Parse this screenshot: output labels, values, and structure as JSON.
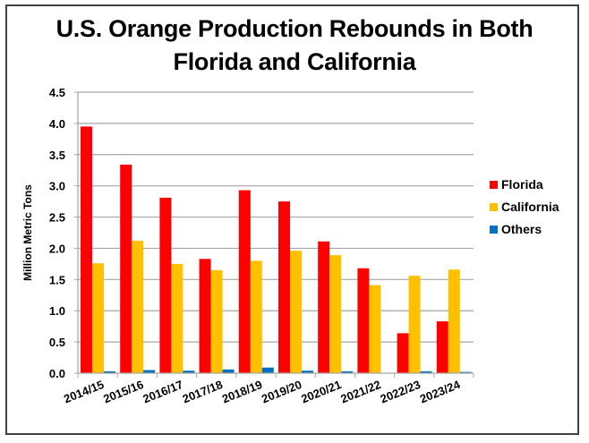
{
  "chart_data": {
    "type": "bar",
    "title_lines": [
      "U.S. Orange Production Rebounds in Both",
      "Florida and California"
    ],
    "title": "U.S. Orange Production Rebounds in Both Florida and California",
    "xlabel": "",
    "ylabel": "Million Metric Tons",
    "ylim": [
      0,
      4.5
    ],
    "yticks": [
      0.0,
      0.5,
      1.0,
      1.5,
      2.0,
      2.5,
      3.0,
      3.5,
      4.0,
      4.5
    ],
    "ytick_labels": [
      "0.0",
      "0.5",
      "1.0",
      "1.5",
      "2.0",
      "2.5",
      "3.0",
      "3.5",
      "4.0",
      "4.5"
    ],
    "grid": true,
    "legend_position": "right",
    "categories": [
      "2014/15",
      "2015/16",
      "2016/17",
      "2017/18",
      "2018/19",
      "2019/20",
      "2020/21",
      "2021/22",
      "2022/23",
      "2023/24"
    ],
    "series": [
      {
        "name": "Florida",
        "color": "#FF0000",
        "values": [
          3.95,
          3.34,
          2.81,
          1.83,
          2.93,
          2.75,
          2.11,
          1.68,
          0.64,
          0.83
        ]
      },
      {
        "name": "California",
        "color": "#FFC000",
        "values": [
          1.76,
          2.12,
          1.75,
          1.65,
          1.8,
          1.96,
          1.89,
          1.41,
          1.56,
          1.66
        ]
      },
      {
        "name": "Others",
        "color": "#0070C0",
        "values": [
          0.03,
          0.05,
          0.04,
          0.06,
          0.09,
          0.04,
          0.03,
          0.0,
          0.03,
          0.02
        ]
      }
    ]
  }
}
